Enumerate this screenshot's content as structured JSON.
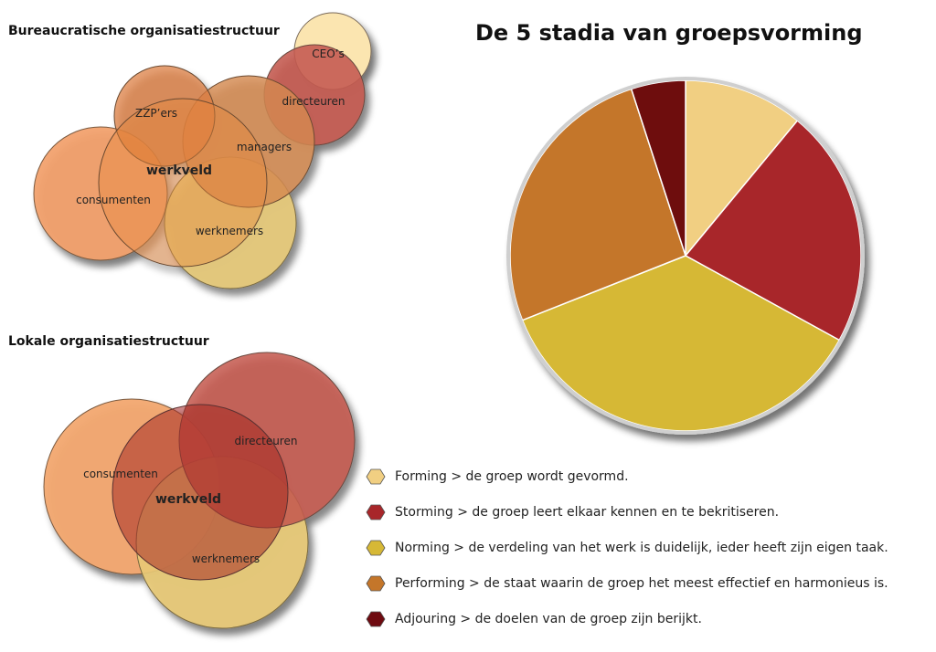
{
  "bureaucratic": {
    "title": "Bureaucratische organisatiestructuur",
    "labels": {
      "ceo": "CEO’s",
      "directeuren": "directeuren",
      "zzp": "ZZP’ers",
      "managers": "managers",
      "werkveld": "werkveld",
      "consumenten": "consumenten",
      "werknemers": "werknemers"
    }
  },
  "local": {
    "title": "Lokale organisatiestructuur",
    "labels": {
      "directeuren": "directeuren",
      "consumenten": "consumenten",
      "werkveld": "werkveld",
      "werknemers": "werknemers"
    }
  },
  "pie": {
    "title": "De 5 stadia van groepsvorming"
  },
  "chart_data": {
    "type": "pie",
    "title": "De 5 stadia van groepsvorming",
    "labels": [
      "Forming",
      "Storming",
      "Norming",
      "Performing",
      "Adjouring"
    ],
    "values": [
      11,
      22,
      36,
      26,
      5
    ],
    "colors": [
      "#f1cf82",
      "#a8262a",
      "#d6b836",
      "#c4762a",
      "#6e0a10"
    ]
  },
  "legend": {
    "items": [
      {
        "text": "Forming > de groep wordt gevormd.",
        "color": "#f1cf82"
      },
      {
        "text": "Storming > de groep leert elkaar kennen en te bekritiseren.",
        "color": "#a8262a"
      },
      {
        "text": "Norming > de verdeling van het werk is duidelijk, ieder heeft zijn eigen taak.",
        "color": "#d6b836"
      },
      {
        "text": "Performing > de staat waarin de groep het meest effectief en harmonieus is.",
        "color": "#c4762a"
      },
      {
        "text": "Adjouring > de doelen van de groep zijn berijkt.",
        "color": "#6e0a10"
      }
    ]
  }
}
